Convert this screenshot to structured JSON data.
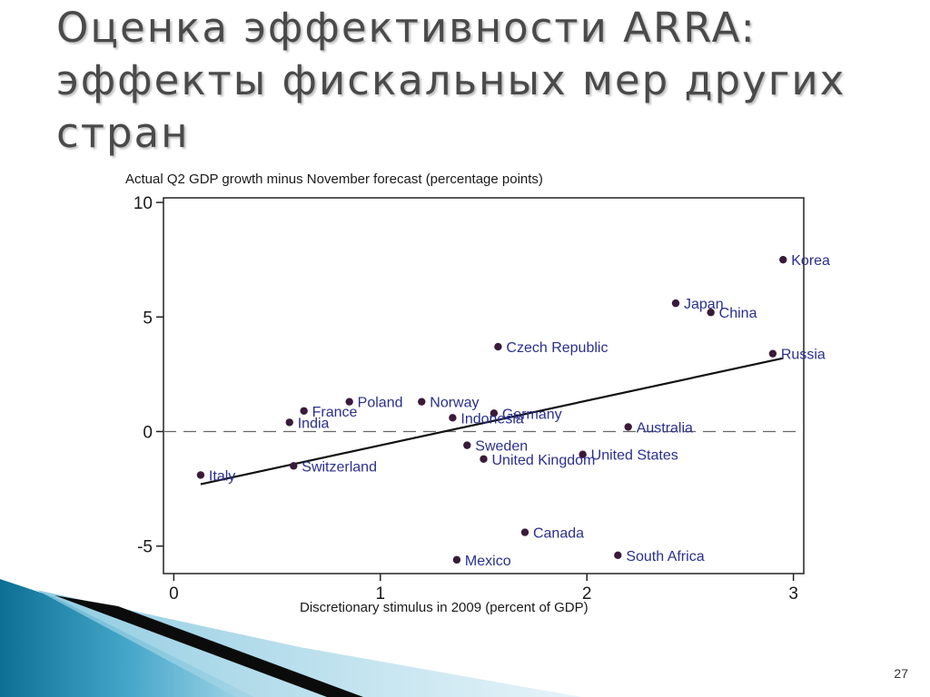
{
  "slide": {
    "title_lines": [
      "Оценка эффективности ARRA:",
      "эффекты фискальных мер других",
      "стран"
    ],
    "page_number": "27"
  },
  "chart_data": {
    "type": "scatter",
    "title": "",
    "ylabel": "Actual Q2 GDP growth minus November forecast (percentage points)",
    "xlabel": "Discretionary stimulus in 2009 (percent of GDP)",
    "xlim": [
      -0.05,
      3.05
    ],
    "ylim": [
      -6.2,
      10.2
    ],
    "xticks": [
      0,
      1,
      2,
      3
    ],
    "yticks": [
      -5,
      0,
      5,
      10
    ],
    "reference_line_y": 0,
    "grid": false,
    "points": [
      {
        "label": "Korea",
        "x": 2.95,
        "y": 7.5
      },
      {
        "label": "Japan",
        "x": 2.43,
        "y": 5.6
      },
      {
        "label": "China",
        "x": 2.6,
        "y": 5.2
      },
      {
        "label": "Czech Republic",
        "x": 1.57,
        "y": 3.7
      },
      {
        "label": "Russia",
        "x": 2.9,
        "y": 3.4
      },
      {
        "label": "Poland",
        "x": 0.85,
        "y": 1.3
      },
      {
        "label": "Norway",
        "x": 1.2,
        "y": 1.3
      },
      {
        "label": "France",
        "x": 0.63,
        "y": 0.9
      },
      {
        "label": "Germany",
        "x": 1.55,
        "y": 0.8
      },
      {
        "label": "Indonesia",
        "x": 1.35,
        "y": 0.6
      },
      {
        "label": "India",
        "x": 0.56,
        "y": 0.4
      },
      {
        "label": "Australia",
        "x": 2.2,
        "y": 0.2
      },
      {
        "label": "Sweden",
        "x": 1.42,
        "y": -0.6
      },
      {
        "label": "United States",
        "x": 1.98,
        "y": -1.0
      },
      {
        "label": "United Kingdom",
        "x": 1.5,
        "y": -1.2
      },
      {
        "label": "Switzerland",
        "x": 0.58,
        "y": -1.5
      },
      {
        "label": "Italy",
        "x": 0.13,
        "y": -1.9
      },
      {
        "label": "Canada",
        "x": 1.7,
        "y": -4.4
      },
      {
        "label": "South Africa",
        "x": 2.15,
        "y": -5.4
      },
      {
        "label": "Mexico",
        "x": 1.37,
        "y": -5.6
      }
    ],
    "fit_line": {
      "x1": 0.13,
      "y1": -2.3,
      "x2": 2.95,
      "y2": 3.2
    },
    "colors": {
      "point": "#3a1a3a",
      "label": "#2a2f8f",
      "axis": "#222222"
    }
  }
}
